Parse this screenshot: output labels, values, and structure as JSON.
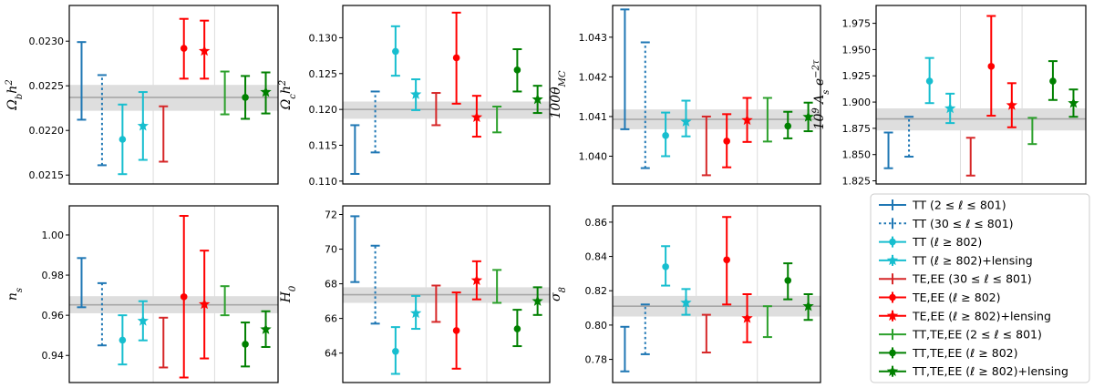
{
  "legend": [
    {
      "label": "TT (2 ≤ ℓ ≤ 801)",
      "color": "#1f77b4",
      "marker": "none",
      "dotted": false
    },
    {
      "label": "TT (30 ≤ ℓ ≤ 801)",
      "color": "#1f77b4",
      "marker": "none",
      "dotted": true
    },
    {
      "label": "TT (ℓ ≥ 802)",
      "color": "#17becf",
      "marker": "circle",
      "dotted": false
    },
    {
      "label": "TT (ℓ ≥ 802)+lensing",
      "color": "#17becf",
      "marker": "star",
      "dotted": false
    },
    {
      "label": "TE,EE (30 ≤ ℓ ≤ 801)",
      "color": "#d62728",
      "marker": "none",
      "dotted": false
    },
    {
      "label": "TE,EE (ℓ ≥ 802)",
      "color": "#ff0000",
      "marker": "circle",
      "dotted": false
    },
    {
      "label": "TE,EE (ℓ ≥ 802)+lensing",
      "color": "#ff0000",
      "marker": "star",
      "dotted": false
    },
    {
      "label": "TT,TE,EE (2 ≤ ℓ ≤ 801)",
      "color": "#2ca02c",
      "marker": "none",
      "dotted": false
    },
    {
      "label": "TT,TE,EE (ℓ ≥ 802)",
      "color": "#008000",
      "marker": "circle",
      "dotted": false
    },
    {
      "label": "TT,TE,EE (ℓ ≥ 802)+lensing",
      "color": "#008000",
      "marker": "star",
      "dotted": false
    }
  ],
  "chart_data": [
    {
      "type": "errorbar",
      "ylabel": "Ω_b h²",
      "ylim": [
        0.0214,
        0.0234
      ],
      "yticks": [
        "0.0215",
        "0.0220",
        "0.0225",
        "0.0230"
      ],
      "band": [
        0.02222,
        0.02251
      ],
      "band_center": 0.02237,
      "values": [
        0.02256,
        0.02212,
        0.0219,
        0.02205,
        0.02196,
        0.02292,
        0.02289,
        0.02242,
        0.02237,
        0.02243
      ],
      "lower": [
        0.02212,
        0.02161,
        0.02151,
        0.02167,
        0.02165,
        0.02258,
        0.02258,
        0.02218,
        0.02213,
        0.02219
      ],
      "upper": [
        0.02299,
        0.02262,
        0.02229,
        0.02243,
        0.02227,
        0.02325,
        0.02323,
        0.02266,
        0.02261,
        0.02265
      ]
    },
    {
      "type": "errorbar",
      "ylabel": "Ω_c h²",
      "ylim": [
        0.1096,
        0.1345
      ],
      "yticks": [
        "0.110",
        "0.115",
        "0.120",
        "0.125",
        "0.130"
      ],
      "band": [
        0.1187,
        0.1211
      ],
      "band_center": 0.12,
      "values": [
        0.1144,
        0.1183,
        0.1281,
        0.1221,
        0.12,
        0.1272,
        0.1189,
        0.1185,
        0.1255,
        0.1214
      ],
      "lower": [
        0.111,
        0.114,
        0.1247,
        0.1199,
        0.1178,
        0.1208,
        0.1162,
        0.1168,
        0.1225,
        0.1195
      ],
      "upper": [
        0.1178,
        0.1225,
        0.1316,
        0.1242,
        0.1223,
        0.1335,
        0.1219,
        0.1204,
        0.1284,
        0.1233
      ]
    },
    {
      "type": "errorbar",
      "ylabel": "100θ_MC",
      "ylim": [
        1.0393,
        1.0438
      ],
      "yticks": [
        "1.040",
        "1.041",
        "1.042",
        "1.043"
      ],
      "band": [
        1.04068,
        1.04118
      ],
      "band_center": 1.04093,
      "values": [
        1.0422,
        1.04132,
        1.04052,
        1.04087,
        1.04026,
        1.04038,
        1.04091,
        1.04082,
        1.04076,
        1.04099
      ],
      "lower": [
        1.04068,
        1.0397,
        1.04,
        1.0405,
        1.03952,
        1.03972,
        1.04036,
        1.04037,
        1.04045,
        1.04063
      ],
      "upper": [
        1.0437,
        1.04287,
        1.0411,
        1.0414,
        1.041,
        1.04106,
        1.04147,
        1.04147,
        1.04112,
        1.04135
      ]
    },
    {
      "type": "errorbar",
      "ylabel": "10⁹ A_s e^(−2τ)",
      "ylim": [
        1.822,
        1.992
      ],
      "yticks": [
        "1.825",
        "1.850",
        "1.875",
        "1.900",
        "1.925",
        "1.950",
        "1.975"
      ],
      "band": [
        1.873,
        1.894
      ],
      "band_center": 1.884,
      "values": [
        1.854,
        1.867,
        1.92,
        1.894,
        1.848,
        1.934,
        1.897,
        1.873,
        1.92,
        1.899
      ],
      "lower": [
        1.837,
        1.848,
        1.899,
        1.88,
        1.83,
        1.887,
        1.876,
        1.86,
        1.902,
        1.886
      ],
      "upper": [
        1.871,
        1.886,
        1.942,
        1.908,
        1.866,
        1.982,
        1.918,
        1.885,
        1.939,
        1.912
      ]
    },
    {
      "type": "errorbar",
      "ylabel": "n_s",
      "ylim": [
        0.9265,
        1.0145
      ],
      "yticks": [
        "0.94",
        "0.96",
        "0.98",
        "1.00"
      ],
      "band": [
        0.961,
        0.9695
      ],
      "band_center": 0.9652,
      "values": [
        0.9764,
        0.9605,
        0.9476,
        0.9572,
        0.9465,
        0.9692,
        0.9655,
        0.9673,
        0.9456,
        0.953
      ],
      "lower": [
        0.964,
        0.945,
        0.9355,
        0.9475,
        0.934,
        0.929,
        0.9385,
        0.96,
        0.9345,
        0.9442
      ],
      "upper": [
        0.9885,
        0.976,
        0.96,
        0.967,
        0.9588,
        1.0095,
        0.9922,
        0.9745,
        0.9564,
        0.962
      ]
    },
    {
      "type": "errorbar",
      "ylabel": "H_0",
      "ylim": [
        62.3,
        72.5
      ],
      "yticks": [
        "64",
        "66",
        "68",
        "70",
        "72"
      ],
      "band": [
        66.9,
        67.8
      ],
      "band_center": 67.37,
      "values": [
        70.0,
        67.9,
        64.1,
        66.3,
        66.8,
        65.3,
        68.2,
        67.8,
        65.4,
        67.0
      ],
      "lower": [
        68.1,
        65.7,
        62.8,
        65.4,
        65.8,
        63.1,
        67.1,
        66.9,
        64.4,
        66.2
      ],
      "upper": [
        71.9,
        70.2,
        65.5,
        67.3,
        67.9,
        67.5,
        69.3,
        68.8,
        66.5,
        67.8
      ]
    },
    {
      "type": "errorbar",
      "ylabel": "σ_8",
      "ylim": [
        0.7665,
        0.8695
      ],
      "yticks": [
        "0.78",
        "0.80",
        "0.82",
        "0.84",
        "0.86"
      ],
      "band": [
        0.805,
        0.817
      ],
      "band_center": 0.811,
      "values": [
        0.786,
        0.798,
        0.834,
        0.813,
        0.795,
        0.838,
        0.804,
        0.802,
        0.826,
        0.811
      ],
      "lower": [
        0.773,
        0.783,
        0.823,
        0.806,
        0.784,
        0.812,
        0.79,
        0.793,
        0.815,
        0.803
      ],
      "upper": [
        0.799,
        0.812,
        0.846,
        0.821,
        0.806,
        0.863,
        0.818,
        0.811,
        0.836,
        0.818
      ]
    }
  ]
}
